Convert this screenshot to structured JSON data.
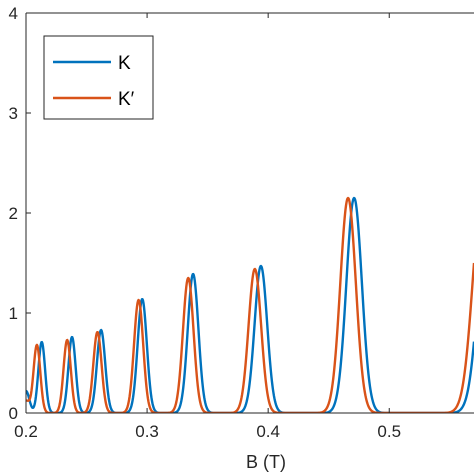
{
  "chart_data": {
    "type": "line",
    "title": "",
    "xlabel": "B (T)",
    "ylabel": "",
    "xlim": [
      0.2,
      0.57
    ],
    "ylim": [
      0,
      4
    ],
    "xticks": [
      0.2,
      0.3,
      0.4,
      0.5
    ],
    "xtick_labels": [
      "0.2",
      "0.3",
      "0.4",
      "0.5"
    ],
    "yticks": [
      0,
      1,
      2,
      3,
      4
    ],
    "ytick_labels": [
      "0",
      "1",
      "2",
      "3",
      "4"
    ],
    "grid": false,
    "legend_position": "top-left",
    "series": [
      {
        "name": "K",
        "color": "#0072BD",
        "peaks": [
          {
            "x": 0.2,
            "height": 0.22,
            "width": 0.0028
          },
          {
            "x": 0.213,
            "height": 0.71,
            "width": 0.0028
          },
          {
            "x": 0.238,
            "height": 0.76,
            "width": 0.003
          },
          {
            "x": 0.262,
            "height": 0.83,
            "width": 0.0034
          },
          {
            "x": 0.296,
            "height": 1.14,
            "width": 0.0038
          },
          {
            "x": 0.338,
            "height": 1.39,
            "width": 0.0044
          },
          {
            "x": 0.394,
            "height": 1.47,
            "width": 0.0052
          },
          {
            "x": 0.471,
            "height": 2.15,
            "width": 0.0064
          },
          {
            "x": 0.582,
            "height": 2.2,
            "width": 0.008
          }
        ]
      },
      {
        "name": "K′",
        "color": "#D95319",
        "peaks": [
          {
            "x": 0.2,
            "height": 0.12,
            "width": 0.0028
          },
          {
            "x": 0.209,
            "height": 0.68,
            "width": 0.0028
          },
          {
            "x": 0.234,
            "height": 0.73,
            "width": 0.003
          },
          {
            "x": 0.259,
            "height": 0.81,
            "width": 0.0034
          },
          {
            "x": 0.293,
            "height": 1.13,
            "width": 0.0038
          },
          {
            "x": 0.334,
            "height": 1.35,
            "width": 0.0044
          },
          {
            "x": 0.389,
            "height": 1.44,
            "width": 0.0052
          },
          {
            "x": 0.466,
            "height": 2.15,
            "width": 0.0064
          },
          {
            "x": 0.577,
            "height": 2.2,
            "width": 0.008
          }
        ]
      }
    ]
  }
}
